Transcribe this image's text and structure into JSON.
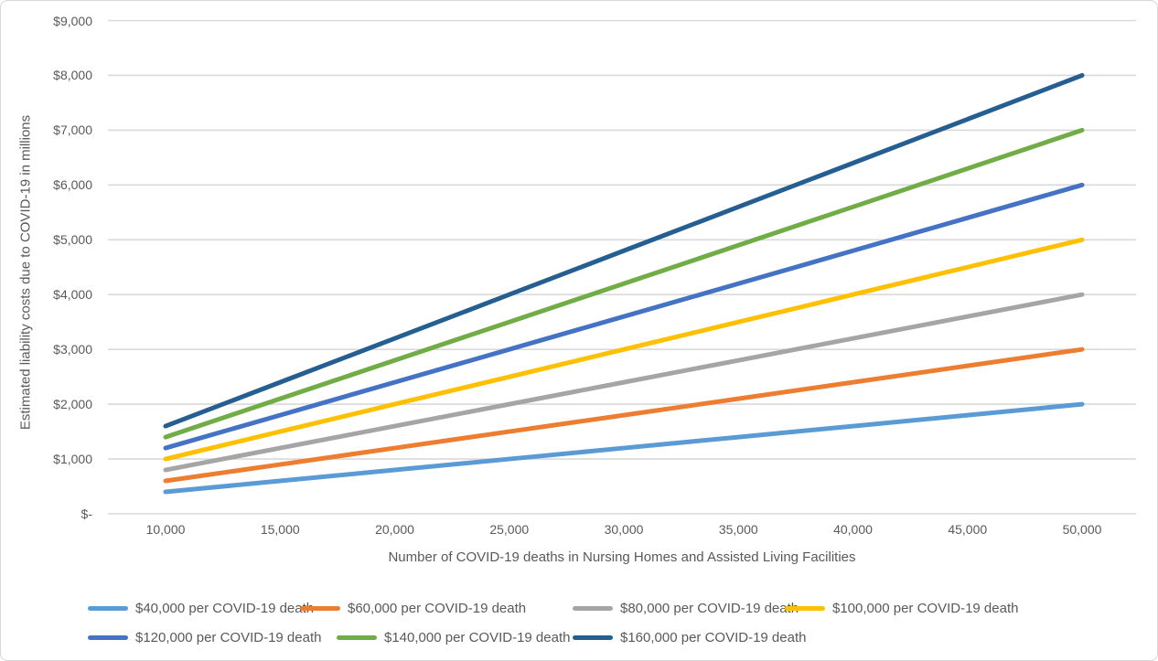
{
  "chart_data": {
    "type": "line",
    "title": "",
    "xlabel": "Number of COVID-19 deaths in Nursing Homes and Assisted Living Facilities",
    "ylabel": "Estimated liability costs due to COVID-19 in millions",
    "x": [
      10000,
      15000,
      20000,
      25000,
      30000,
      35000,
      40000,
      45000,
      50000
    ],
    "x_tick_labels": [
      "10,000",
      "15,000",
      "20,000",
      "25,000",
      "30,000",
      "35,000",
      "40,000",
      "45,000",
      "50,000"
    ],
    "y_ticks": [
      {
        "value": 0,
        "label": "$-"
      },
      {
        "value": 1000,
        "label": "$1,000"
      },
      {
        "value": 2000,
        "label": "$2,000"
      },
      {
        "value": 3000,
        "label": "$3,000"
      },
      {
        "value": 4000,
        "label": "$4,000"
      },
      {
        "value": 5000,
        "label": "$5,000"
      },
      {
        "value": 6000,
        "label": "$6,000"
      },
      {
        "value": 7000,
        "label": "$7,000"
      },
      {
        "value": 8000,
        "label": "$8,000"
      },
      {
        "value": 9000,
        "label": "$9,000"
      }
    ],
    "ylim": [
      0,
      9000
    ],
    "grid": "horizontal",
    "gridline_color": "#D9D9D9",
    "text_color": "#595959",
    "legend_position": "bottom",
    "series": [
      {
        "name": "$40,000 per COVID-19 death",
        "color": "#5B9BD5",
        "values": [
          400,
          600,
          800,
          1000,
          1200,
          1400,
          1600,
          1800,
          2000
        ]
      },
      {
        "name": "$60,000 per COVID-19 death",
        "color": "#ED7D31",
        "values": [
          600,
          900,
          1200,
          1500,
          1800,
          2100,
          2400,
          2700,
          3000
        ]
      },
      {
        "name": "$80,000 per COVID-19 death",
        "color": "#A5A5A5",
        "values": [
          800,
          1200,
          1600,
          2000,
          2400,
          2800,
          3200,
          3600,
          4000
        ]
      },
      {
        "name": "$100,000 per COVID-19 death",
        "color": "#FFC000",
        "values": [
          1000,
          1500,
          2000,
          2500,
          3000,
          3500,
          4000,
          4500,
          5000
        ]
      },
      {
        "name": "$120,000 per COVID-19 death",
        "color": "#4472C4",
        "values": [
          1200,
          1800,
          2400,
          3000,
          3600,
          4200,
          4800,
          5400,
          6000
        ]
      },
      {
        "name": "$140,000 per COVID-19 death",
        "color": "#70AD47",
        "values": [
          1400,
          2100,
          2800,
          3500,
          4200,
          4900,
          5600,
          6300,
          7000
        ]
      },
      {
        "name": "$160,000 per COVID-19 death",
        "color": "#255E91",
        "values": [
          1600,
          2400,
          3200,
          4000,
          4800,
          5600,
          6400,
          7200,
          8000
        ]
      }
    ]
  }
}
